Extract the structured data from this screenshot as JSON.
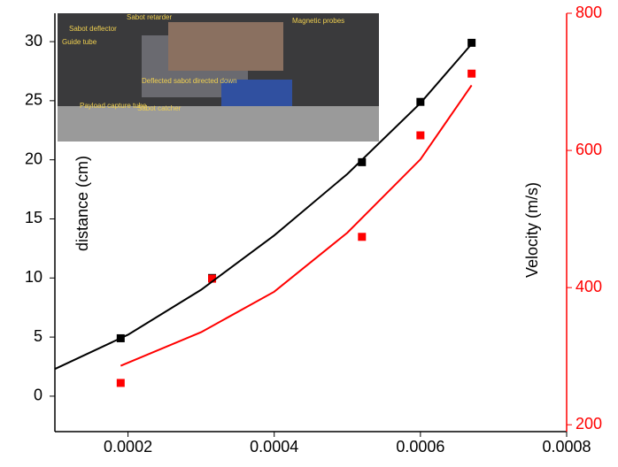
{
  "chart_data": {
    "type": "scatter",
    "xlabel": "",
    "ylabel": "distance (cm)",
    "y2label": "Velocity (m/s)",
    "xlim": [
      0.0001,
      0.0008
    ],
    "xticks": [
      0.0002,
      0.0004,
      0.0006,
      0.0008
    ],
    "ylim": [
      -3,
      32.4
    ],
    "yticks": [
      0,
      5,
      10,
      15,
      20,
      25,
      30
    ],
    "y2lim": [
      190,
      800
    ],
    "y2ticks": [
      200,
      400,
      600,
      800
    ],
    "y2color": "#ff0000",
    "series": [
      {
        "mode": "markers",
        "color": "#000000",
        "x": [
          0.00019,
          0.000315,
          0.00052,
          0.0006,
          0.00067
        ],
        "values": [
          4.9,
          10,
          19.8,
          24.9,
          29.9
        ]
      },
      {
        "mode": "markers",
        "color": "#ff0000",
        "axis": "y2",
        "x": [
          0.00019,
          0.000315,
          0.00052,
          0.0006,
          0.00067
        ],
        "values": [
          261,
          413,
          474,
          622,
          712
        ]
      },
      {
        "mode": "line",
        "color": "#000000",
        "x": [
          0.0001,
          0.0002,
          0.0003,
          0.0004,
          0.0005,
          0.0006,
          0.00067
        ],
        "values": [
          2.3,
          5.2,
          9.0,
          13.6,
          18.8,
          24.8,
          29.8
        ]
      },
      {
        "mode": "line",
        "color": "#ff0000",
        "axis": "y2",
        "x": [
          0.00019,
          0.0003,
          0.0004,
          0.0005,
          0.0006,
          0.00067
        ],
        "values": [
          286,
          335,
          394,
          480,
          587,
          695
        ]
      }
    ],
    "annotations": [
      "Sabot retarder",
      "Sabot deflector",
      "Guide tube",
      "Magnetic probes",
      "Deflected sabot directed down",
      "Payload capture tube",
      "Sabot catcher"
    ]
  }
}
